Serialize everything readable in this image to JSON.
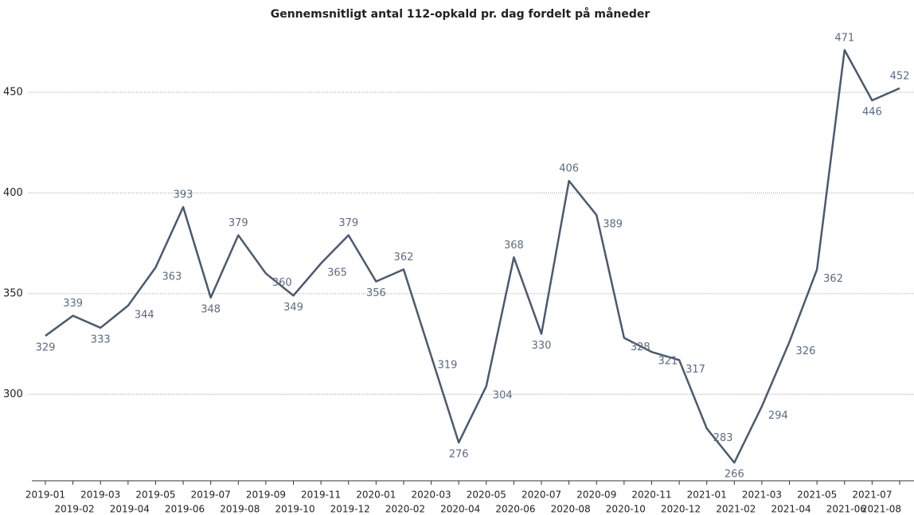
{
  "chart_data": {
    "type": "line",
    "title": "Gennemsnitligt antal 112-opkald pr. dag fordelt på måneder",
    "categories": [
      "2019-01",
      "2019-02",
      "2019-03",
      "2019-04",
      "2019-05",
      "2019-06",
      "2019-07",
      "2019-08",
      "2019-09",
      "2019-10",
      "2019-11",
      "2019-12",
      "2020-01",
      "2020-02",
      "2020-03",
      "2020-04",
      "2020-05",
      "2020-06",
      "2020-07",
      "2020-08",
      "2020-09",
      "2020-10",
      "2020-11",
      "2020-12",
      "2021-01",
      "2021-02",
      "2021-03",
      "2021-04",
      "2021-05",
      "2021-06",
      "2021-07",
      "2021-08"
    ],
    "values": [
      329,
      339,
      333,
      344,
      363,
      393,
      348,
      379,
      360,
      349,
      365,
      379,
      356,
      362,
      319,
      276,
      304,
      368,
      330,
      406,
      389,
      328,
      321,
      317,
      283,
      266,
      294,
      326,
      362,
      471,
      446,
      452
    ],
    "color": "#4a5a70",
    "ylim": [
      257,
      484
    ],
    "yticks": [
      300,
      350,
      400,
      450
    ],
    "grid": true
  }
}
